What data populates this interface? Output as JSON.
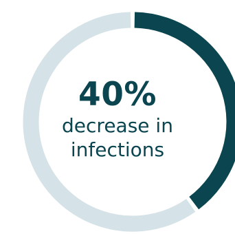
{
  "chart_data": {
    "type": "pie",
    "variant": "donut",
    "values": [
      40,
      60
    ],
    "colors": [
      "#0b4650",
      "#d5e2e7"
    ],
    "center_value": "40%",
    "center_caption_line1": "decrease in",
    "center_caption_line2": "infections"
  }
}
